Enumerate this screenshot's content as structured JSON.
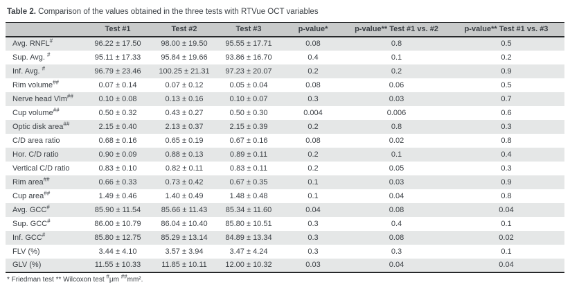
{
  "colors": {
    "text": "#3a3f44",
    "header_background": "#c8caca",
    "row_stripe": "#e5e7e7",
    "rule": "#26282a",
    "page_background": "#ffffff"
  },
  "title": {
    "prefix": "Table 2.",
    "text": " Comparison of the values obtained in the three tests with RTVue OCT variables"
  },
  "table": {
    "columns": [
      "",
      "Test #1",
      "Test #2",
      "Test #3",
      "p-value*",
      "p-value** Test #1 vs. #2",
      "p-value** Test #1 vs. #3"
    ],
    "rows": [
      {
        "label": "Avg. RNFL",
        "label_sup": "#",
        "cells": [
          "96.22 ± 17.50",
          "98.00 ± 19.50",
          "95.55 ± 17.71",
          "0.08",
          "0.8",
          "0.5"
        ]
      },
      {
        "label": "Sup. Avg. ",
        "label_sup": "#",
        "cells": [
          "95.11 ± 17.33",
          "95.84 ± 19.66",
          "93.86 ± 16.70",
          "0.4",
          "0.1",
          "0.2"
        ]
      },
      {
        "label": "Inf. Avg. ",
        "label_sup": "#",
        "cells": [
          "96.79 ± 23.46",
          "100.25 ± 21.31",
          "97.23 ± 20.07",
          "0.2",
          "0.2",
          "0.9"
        ]
      },
      {
        "label": "Rim volume",
        "label_sup": "##",
        "cells": [
          "0.07 ± 0.14",
          "0.07 ± 0.12",
          "0.05 ± 0.04",
          "0.08",
          "0.06",
          "0.5"
        ]
      },
      {
        "label": "Nerve head Vlm",
        "label_sup": "##",
        "cells": [
          "0.10 ± 0.08",
          "0.13 ± 0.16",
          "0.10 ± 0.07",
          "0.3",
          "0.03",
          "0.7"
        ]
      },
      {
        "label": "Cup volume",
        "label_sup": "##",
        "cells": [
          "0.50 ± 0.32",
          "0.43 ± 0.27",
          "0.50 ± 0.30",
          "0.004",
          "0.006",
          "0.6"
        ]
      },
      {
        "label": "Optic disk area",
        "label_sup": "##",
        "cells": [
          "2.15 ± 0.40",
          "2.13 ± 0.37",
          "2.15 ± 0.39",
          "0.2",
          "0.8",
          "0.3"
        ]
      },
      {
        "label": "C/D area ratio",
        "label_sup": "",
        "cells": [
          "0.68 ± 0.16",
          "0.65 ± 0.19",
          "0.67 ± 0.16",
          "0.08",
          "0.02",
          "0.8"
        ]
      },
      {
        "label": "Hor. C/D ratio",
        "label_sup": "",
        "cells": [
          "0.90 ± 0.09",
          "0.88 ± 0.13",
          "0.89 ± 0.11",
          "0.2",
          "0.1",
          "0.4"
        ]
      },
      {
        "label": "Vertical C/D ratio",
        "label_sup": "",
        "cells": [
          "0.83 ± 0.10",
          "0.82 ± 0.11",
          "0.83 ± 0.11",
          "0.2",
          "0.05",
          "0.3"
        ]
      },
      {
        "label": "Rim area",
        "label_sup": "##",
        "cells": [
          "0.66 ± 0.33",
          "0.73 ± 0.42",
          "0.67 ± 0.35",
          "0.1",
          "0.03",
          "0.9"
        ]
      },
      {
        "label": "Cup area",
        "label_sup": "##",
        "cells": [
          "1.49 ± 0.46",
          "1.40 ± 0.49",
          "1.48 ± 0.48",
          "0.1",
          "0.04",
          "0.8"
        ]
      },
      {
        "label": "Avg. GCC",
        "label_sup": "#",
        "cells": [
          "85.90 ± 11.54",
          "85.66 ± 11.43",
          "85.34 ± 11.60",
          "0.04",
          "0.08",
          "0.04"
        ]
      },
      {
        "label": "Sup. GCC",
        "label_sup": "#",
        "cells": [
          "86.00 ± 10.79",
          "86.04 ± 10.40",
          "85.80 ± 10.51",
          "0.3",
          "0.4",
          "0.1"
        ]
      },
      {
        "label": "Inf. GCC",
        "label_sup": "#",
        "cells": [
          "85.80 ± 12.75",
          "85.29 ± 13.14",
          "84.89 ± 13.34",
          "0.3",
          "0.08",
          "0.02"
        ]
      },
      {
        "label": "FLV (%)",
        "label_sup": "",
        "cells": [
          "3.44 ± 4.10",
          "3.57 ± 3.94",
          "3.47 ± 4.24",
          "0.3",
          "0.3",
          "0.1"
        ]
      },
      {
        "label": "GLV (%)",
        "label_sup": "",
        "cells": [
          "11.55 ± 10.33",
          "11.85 ± 10.11",
          "12.00 ± 10.32",
          "0.03",
          "0.04",
          "0.04"
        ]
      }
    ]
  },
  "footnote": {
    "parts": [
      {
        "t": "* Friedman test ** Wilcoxon test "
      },
      {
        "sup": "#"
      },
      {
        "t": "μm "
      },
      {
        "sup": "##"
      },
      {
        "t": "mm²."
      }
    ]
  }
}
